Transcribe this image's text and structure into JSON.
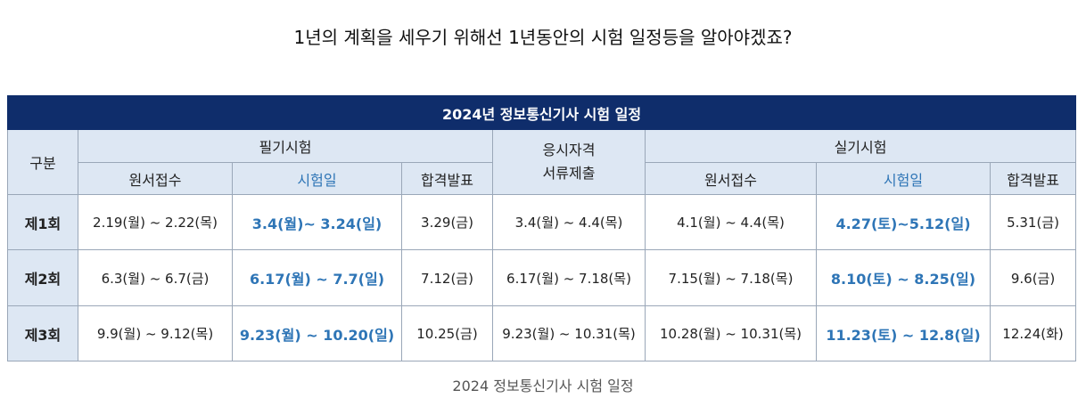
{
  "header": {
    "intro": "1년의 계획을 세우기 위해선 1년동안의 시험 일정등을 알아야겠죠?"
  },
  "table": {
    "title": "2024년 정보통신기사 시험 일정",
    "groups": {
      "division": "구분",
      "written": "필기시험",
      "docs": [
        "응시자격",
        "서류제출"
      ],
      "practical": "실기시험"
    },
    "subheaders": {
      "written": [
        "원서접수",
        "시험일",
        "합격발표"
      ],
      "practical": [
        "원서접수",
        "시험일",
        "합격발표"
      ]
    },
    "rows": [
      [
        "제1회",
        "2.19(월) ~ 2.22(목)",
        "3.4(월)~ 3.24(일)",
        "3.29(금)",
        "3.4(월) ~ 4.4(목)",
        "4.1(월) ~ 4.4(목)",
        "4.27(토)~5.12(일)",
        "5.31(금)"
      ],
      [
        "제2회",
        "6.3(월) ~ 6.7(금)",
        "6.17(월) ~ 7.7(일)",
        "7.12(금)",
        "6.17(월) ~ 7.18(목)",
        "7.15(월) ~ 7.18(목)",
        "8.10(토) ~ 8.25(일)",
        "9.6(금)"
      ],
      [
        "제3회",
        "9.9(월) ~ 9.12(목)",
        "9.23(월) ~ 10.20(일)",
        "10.25(금)",
        "9.23(월) ~ 10.31(목)",
        "10.28(월) ~ 10.31(목)",
        "11.23(토) ~ 12.8(일)",
        "12.24(화)"
      ]
    ]
  },
  "caption": "2024 정보통신기사 시험 일정"
}
